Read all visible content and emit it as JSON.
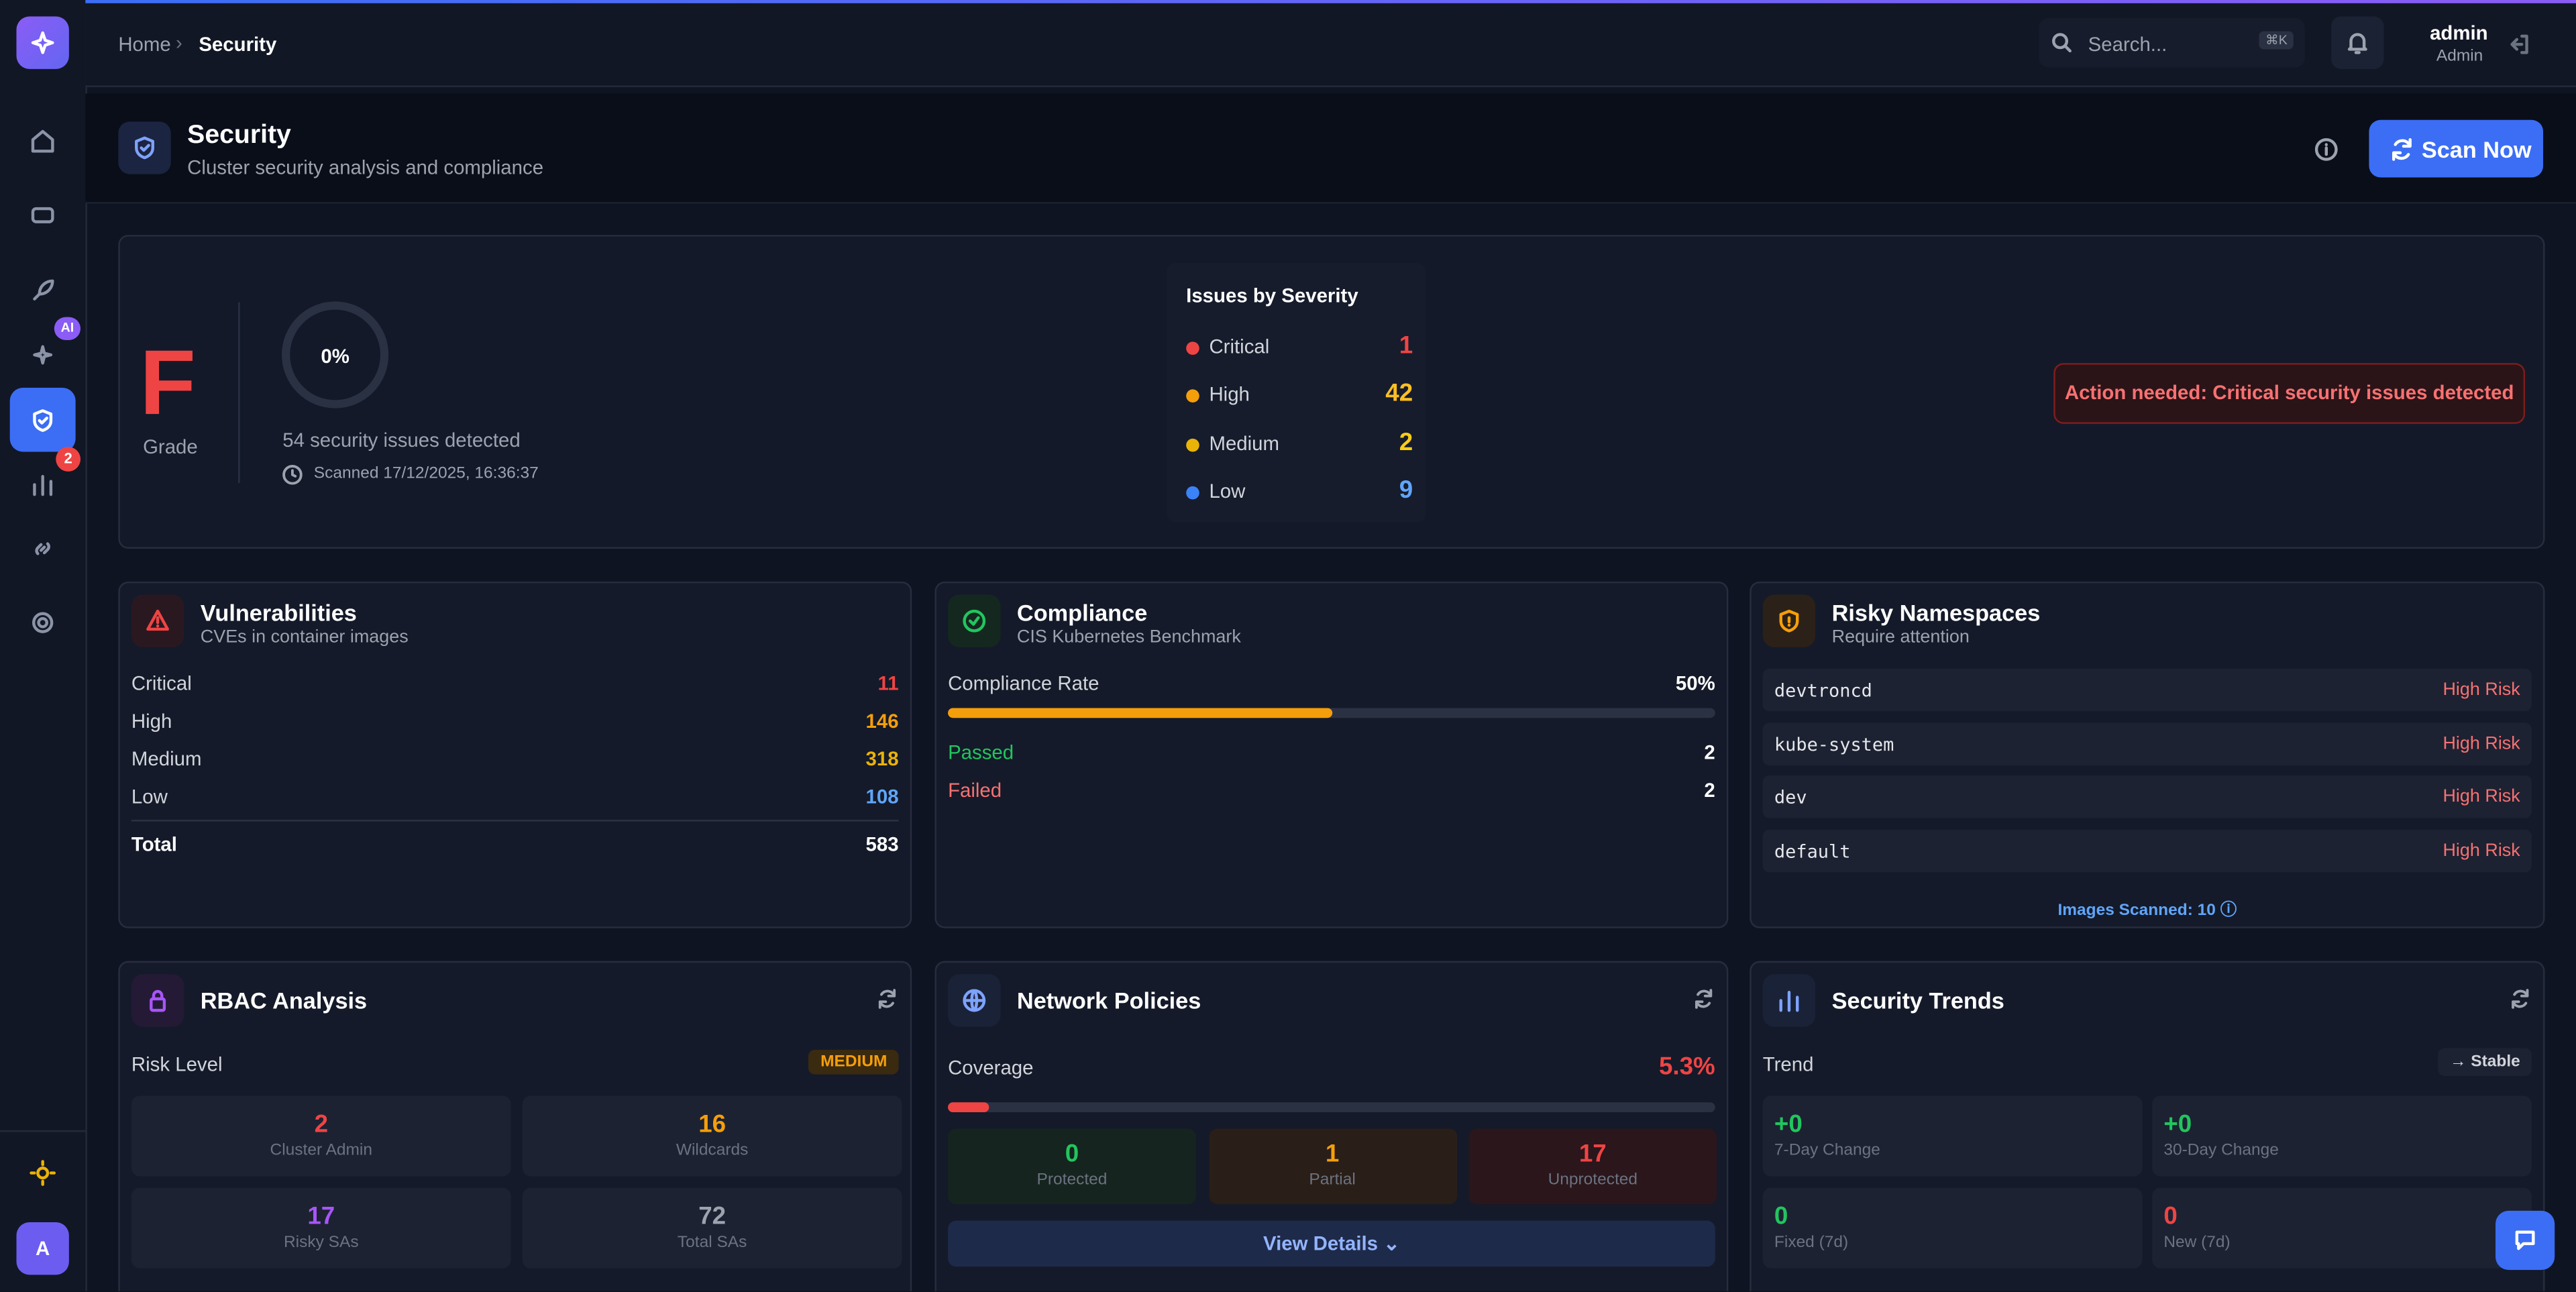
{
  "breadcrumb": [
    "Home",
    "Security"
  ],
  "search": {
    "placeholder": "Search...",
    "shortcut": "⌘K"
  },
  "user": {
    "name": "admin",
    "role": "Admin"
  },
  "sidebar": {
    "ai_badge": "AI",
    "alert_badge": "2",
    "avatar": "A"
  },
  "header": {
    "title": "Security",
    "subtitle": "Cluster security analysis and compliance",
    "scan_button": "Scan Now"
  },
  "summary": {
    "grade": "F",
    "grade_label": "Grade",
    "score": {
      "value": 0,
      "label": "0%"
    },
    "issues_detected": "54 security issues detected",
    "scanned": "Scanned 17/12/2025, 16:36:37",
    "severity_title": "Issues by Severity",
    "severity": [
      {
        "label": "Critical",
        "count": 1
      },
      {
        "label": "High",
        "count": 42
      },
      {
        "label": "Medium",
        "count": 2
      },
      {
        "label": "Low",
        "count": 9
      }
    ],
    "alert": "Action needed: Critical security issues detected"
  },
  "vulnerabilities": {
    "title": "Vulnerabilities",
    "subtitle": "CVEs in container images",
    "rows": [
      {
        "label": "Critical",
        "value": 11
      },
      {
        "label": "High",
        "value": 146
      },
      {
        "label": "Medium",
        "value": 318
      },
      {
        "label": "Low",
        "value": 108
      }
    ],
    "total": {
      "label": "Total",
      "value": 583
    }
  },
  "compliance": {
    "title": "Compliance",
    "subtitle": "CIS Kubernetes Benchmark",
    "rate_label": "Compliance Rate",
    "rate": {
      "value": 50,
      "label": "50%"
    },
    "rows": [
      {
        "label": "Passed",
        "value": 2
      },
      {
        "label": "Failed",
        "value": 2
      }
    ]
  },
  "risky_namespaces": {
    "title": "Risky Namespaces",
    "subtitle": "Require attention",
    "items": [
      {
        "name": "devtroncd",
        "risk": "High Risk"
      },
      {
        "name": "kube-system",
        "risk": "High Risk"
      },
      {
        "name": "dev",
        "risk": "High Risk"
      },
      {
        "name": "default",
        "risk": "High Risk"
      }
    ],
    "images_scanned": "Images Scanned: 10"
  },
  "rbac": {
    "title": "RBAC Analysis",
    "risk_label": "Risk Level",
    "risk": "MEDIUM",
    "stats": [
      {
        "value": 2,
        "label": "Cluster Admin"
      },
      {
        "value": 16,
        "label": "Wildcards"
      },
      {
        "value": 17,
        "label": "Risky SAs"
      },
      {
        "value": 72,
        "label": "Total SAs"
      }
    ]
  },
  "network": {
    "title": "Network Policies",
    "coverage_label": "Coverage",
    "coverage": {
      "value": 5.3,
      "label": "5.3%"
    },
    "stats": [
      {
        "value": 0,
        "label": "Protected"
      },
      {
        "value": 1,
        "label": "Partial"
      },
      {
        "value": 17,
        "label": "Unprotected"
      }
    ],
    "button": "View Details"
  },
  "trends": {
    "title": "Security Trends",
    "trend_label": "Trend",
    "trend": "Stable",
    "stats": [
      {
        "value": "+0",
        "label": "7-Day Change"
      },
      {
        "value": "+0",
        "label": "30-Day Change"
      },
      {
        "value": "0",
        "label": "Fixed (7d)"
      },
      {
        "value": "0",
        "label": "New (7d)"
      }
    ]
  }
}
